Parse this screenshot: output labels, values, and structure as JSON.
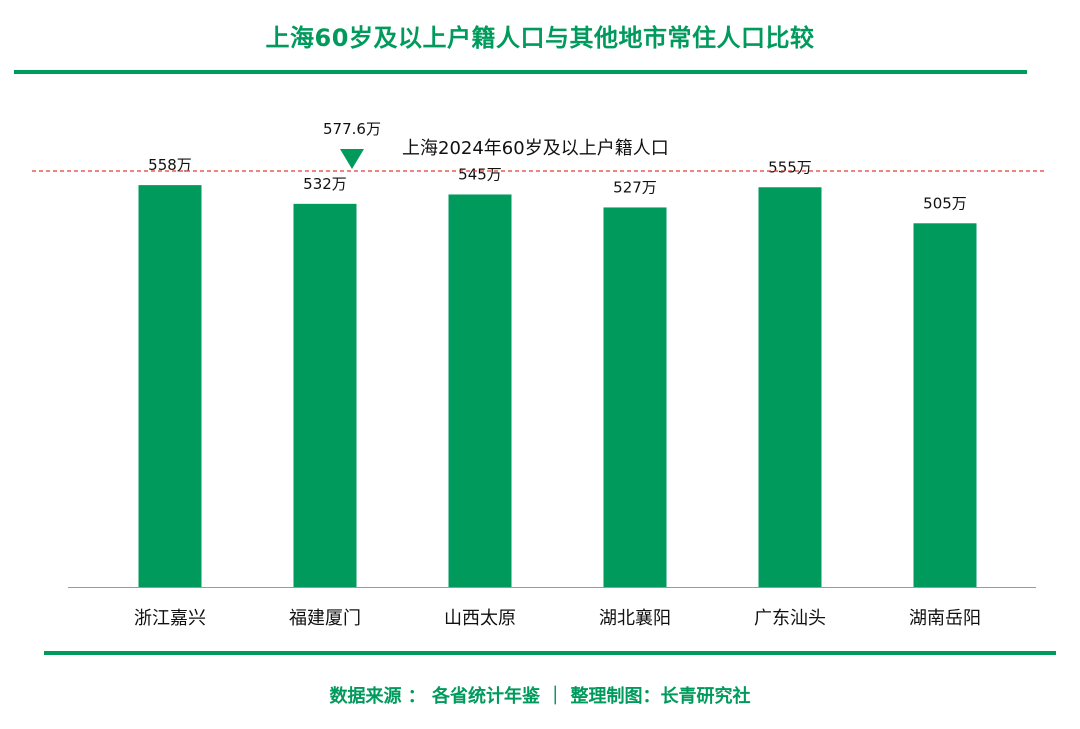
{
  "page": {
    "title": "上海60岁及以上户籍人口与其他地市常住人口比较",
    "source": "数据来源 ： 各省统计年鉴  ｜  整理制图：长青研究社"
  },
  "colors": {
    "accent": "#009a5c",
    "bar": "#009a5c",
    "reference_line": "#e53935",
    "text": "#111111"
  },
  "chart_data": {
    "type": "bar",
    "unit_suffix": "万",
    "categories": [
      "浙江嘉兴",
      "福建厦门",
      "山西太原",
      "湖北襄阳",
      "广东汕头",
      "湖南岳阳"
    ],
    "values": [
      558,
      532,
      545,
      527,
      555,
      505
    ],
    "value_labels": [
      "558万",
      "532万",
      "545万",
      "527万",
      "555万",
      "505万"
    ],
    "ylim": [
      0,
      577.6
    ],
    "grid": false,
    "reference": {
      "value": 577.6,
      "value_label": "577.6万",
      "label": "上海2024年60岁及以上户籍人口",
      "style": "dashed",
      "marker": "green-down-triangle"
    }
  }
}
